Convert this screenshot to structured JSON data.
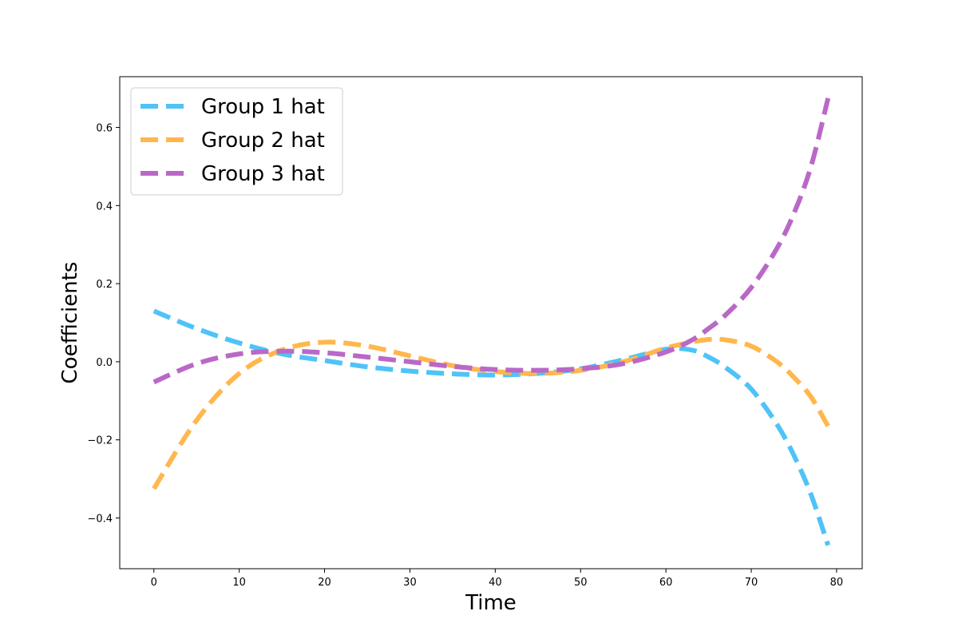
{
  "chart_data": {
    "type": "line",
    "title": "",
    "xlabel": "Time",
    "ylabel": "Coefficients",
    "xlim": [
      -4,
      83
    ],
    "ylim": [
      -0.53,
      0.73
    ],
    "xticks": [
      0,
      10,
      20,
      30,
      40,
      50,
      60,
      70,
      80
    ],
    "yticks": [
      -0.4,
      -0.2,
      0.0,
      0.2,
      0.4,
      0.6
    ],
    "ytick_labels": [
      "−0.4",
      "−0.2",
      "0.0",
      "0.2",
      "0.4",
      "0.6"
    ],
    "grid": false,
    "legend": "upper-left",
    "x": [
      0,
      5,
      10,
      15,
      20,
      25,
      30,
      35,
      40,
      45,
      50,
      55,
      60,
      63,
      65,
      67,
      70,
      73,
      75,
      77,
      79
    ],
    "series": [
      {
        "name": "Group 1 hat",
        "color": "#4fc3f7",
        "linestyle": "dashed",
        "values": [
          0.13,
          0.085,
          0.048,
          0.02,
          0.003,
          -0.013,
          -0.024,
          -0.031,
          -0.034,
          -0.03,
          -0.018,
          0.005,
          0.032,
          0.03,
          0.012,
          -0.015,
          -0.07,
          -0.16,
          -0.24,
          -0.34,
          -0.47
        ]
      },
      {
        "name": "Group 2 hat",
        "color": "#ffb74d",
        "linestyle": "dashed",
        "values": [
          -0.325,
          -0.15,
          -0.03,
          0.03,
          0.05,
          0.04,
          0.015,
          -0.01,
          -0.025,
          -0.03,
          -0.022,
          0.0,
          0.035,
          0.05,
          0.057,
          0.056,
          0.04,
          0.0,
          -0.04,
          -0.09,
          -0.165
        ]
      },
      {
        "name": "Group 3 hat",
        "color": "#ba68c8",
        "linestyle": "dashed",
        "values": [
          -0.052,
          -0.005,
          0.02,
          0.027,
          0.023,
          0.012,
          0.0,
          -0.012,
          -0.02,
          -0.022,
          -0.018,
          -0.005,
          0.025,
          0.055,
          0.085,
          0.12,
          0.19,
          0.29,
          0.38,
          0.5,
          0.675
        ]
      }
    ]
  }
}
